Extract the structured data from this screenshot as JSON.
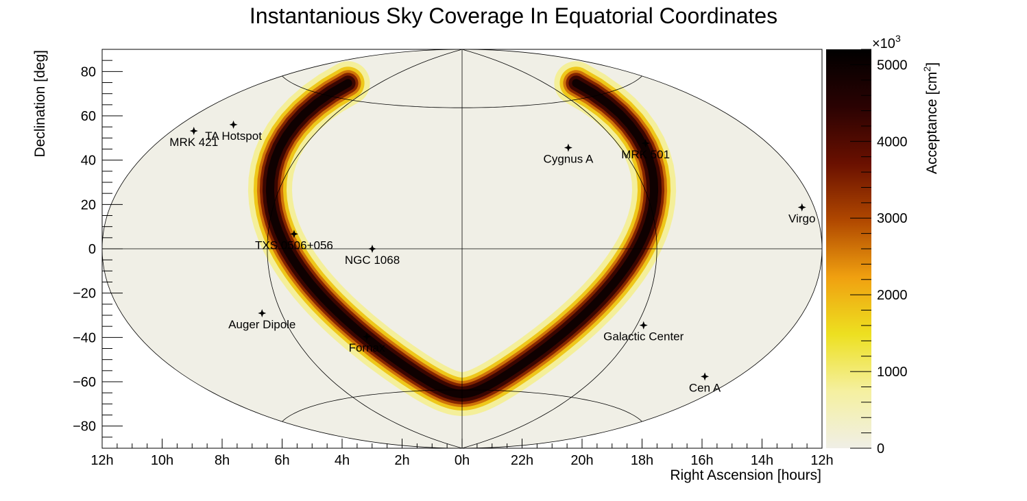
{
  "chart_data": {
    "type": "heatmap",
    "projection": "hammer-aitoff",
    "title": "Instantanious Sky Coverage In Equatorial Coordinates",
    "xlabel": "Right Ascension [hours]",
    "ylabel": "Declination [deg]",
    "zlabel": "Acceptance [cm",
    "zlabel_sup": "2",
    "zlabel_end": "]",
    "z_multiplier": "×10",
    "z_multiplier_exp": "3",
    "x_ticks": [
      "12h",
      "10h",
      "8h",
      "6h",
      "4h",
      "2h",
      "0h",
      "22h",
      "20h",
      "18h",
      "16h",
      "14h",
      "12h"
    ],
    "y_ticks": [
      "80",
      "60",
      "40",
      "20",
      "0",
      "−20",
      "−40",
      "−60",
      "−80"
    ],
    "y_tick_values": [
      80,
      60,
      40,
      20,
      0,
      -20,
      -40,
      -60,
      -80
    ],
    "ylim": [
      -90,
      90
    ],
    "z_ticks": [
      "5000",
      "4000",
      "3000",
      "2000",
      "1000",
      "0"
    ],
    "z_tick_values": [
      5000,
      4000,
      3000,
      2000,
      1000,
      0
    ],
    "zlim": [
      0,
      5200
    ],
    "colormap": [
      "#f0efe6",
      "#f5f0a0",
      "#ede020",
      "#f0a010",
      "#b04800",
      "#6a1000",
      "#2a0202",
      "#000000"
    ],
    "band": {
      "description_key": "acceptance-band",
      "ra_at_min_dec_hours": 0,
      "dec_min": -62,
      "dec_max": 66,
      "peak_acceptance": 5200
    },
    "sources": [
      {
        "name": "MRK 421",
        "ra_h": 11.07,
        "dec": 38.2
      },
      {
        "name": "TA Hotspot",
        "ra_h": 9.78,
        "dec": 43.2
      },
      {
        "name": "Cygnus A",
        "ra_h": 19.99,
        "dec": 40.73
      },
      {
        "name": "MRK 501",
        "ra_h": 16.9,
        "dec": 39.76
      },
      {
        "name": "TXS 0506+056",
        "ra_h": 5.16,
        "dec": 5.69
      },
      {
        "name": "NGC 1068",
        "ra_h": 2.71,
        "dec": -0.01
      },
      {
        "name": "Virgo",
        "ra_h": 12.51,
        "dec": 12.39
      },
      {
        "name": "Auger Dipole",
        "ra_h": 6.67,
        "dec": -24
      },
      {
        "name": "Fornax",
        "ra_h": 3.38,
        "dec": -35.45
      },
      {
        "name": "Galactic Center",
        "ra_h": 17.76,
        "dec": -29.0
      },
      {
        "name": "Cen A",
        "ra_h": 13.42,
        "dec": -43.02
      }
    ]
  }
}
